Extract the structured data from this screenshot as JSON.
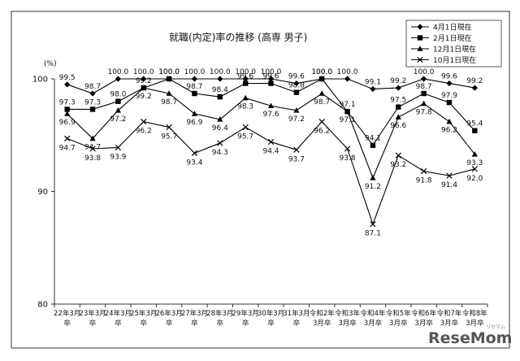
{
  "chart_data": {
    "type": "line",
    "title": "就職(内定)率の推移 (高専 男子)",
    "ylabel": "(%)",
    "ylim": [
      80,
      100
    ],
    "yticks": [
      "80",
      "90",
      "100"
    ],
    "grid": false,
    "legend_position": "top-right",
    "categories": [
      [
        "22年3月",
        "卒"
      ],
      [
        "23年3月",
        "卒"
      ],
      [
        "24年3月",
        "卒"
      ],
      [
        "25年3月",
        "卒"
      ],
      [
        "26年3月",
        "卒"
      ],
      [
        "27年3月",
        "卒"
      ],
      [
        "28年3月",
        "卒"
      ],
      [
        "29年3月",
        "卒"
      ],
      [
        "30年3月",
        "卒"
      ],
      [
        "31年3月",
        "卒"
      ],
      [
        "令和2年",
        "3月卒"
      ],
      [
        "令和3年",
        "3月卒"
      ],
      [
        "令和4年",
        "3月卒"
      ],
      [
        "令和5年",
        "3月卒"
      ],
      [
        "令和6年",
        "3月卒"
      ],
      [
        "令和7年",
        "3月卒"
      ],
      [
        "令和8年",
        "3月卒"
      ]
    ],
    "series": [
      {
        "name": "4月1日現在",
        "marker": "diamond",
        "values": [
          99.5,
          98.7,
          100.0,
          100.0,
          100.0,
          100.0,
          100.0,
          100.0,
          100.0,
          99.6,
          100.0,
          100.0,
          99.1,
          99.2,
          100.0,
          99.6,
          99.2
        ],
        "labels": [
          "99.5",
          "98.7",
          "100.0",
          "100.0",
          "100.0",
          "100.0",
          "100.0",
          "100.0",
          "100.0",
          "99.6",
          "100.0",
          "100.0",
          "99.1",
          "99.2",
          "100.0",
          "99.6",
          "99.2"
        ]
      },
      {
        "name": "2月1日現在",
        "marker": "square",
        "values": [
          97.3,
          97.3,
          98.0,
          99.2,
          100.0,
          98.7,
          98.4,
          99.6,
          99.6,
          98.8,
          100.0,
          97.1,
          94.1,
          97.5,
          98.7,
          97.9,
          95.4
        ],
        "labels": [
          "97.3",
          "97.3",
          "98.0",
          "99.2",
          "100.0",
          "98.7",
          "98.4",
          "99.6",
          "99.6",
          "98.8",
          "100.0",
          "97.1",
          "94.1",
          "97.5",
          "98.7",
          "97.9",
          "95.4"
        ]
      },
      {
        "name": "12月1日現在",
        "marker": "triangle",
        "values": [
          96.9,
          94.7,
          97.2,
          99.2,
          98.7,
          96.9,
          96.4,
          98.3,
          97.6,
          97.2,
          98.7,
          97.1,
          91.2,
          96.6,
          97.8,
          96.2,
          93.3
        ],
        "labels": [
          "96.9",
          "94.7",
          "97.2",
          "99.2",
          "98.7",
          "96.9",
          "96.4",
          "98.3",
          "97.6",
          "97.2",
          "98.7",
          "97.1",
          "91.2",
          "96.6",
          "97.8",
          "96.2",
          "93.3"
        ]
      },
      {
        "name": "10月1日現在",
        "marker": "x",
        "values": [
          94.7,
          93.8,
          93.9,
          96.2,
          95.7,
          93.4,
          94.3,
          95.7,
          94.4,
          93.7,
          96.2,
          93.8,
          87.1,
          93.2,
          91.8,
          91.4,
          92.0
        ],
        "labels": [
          "94.7",
          "93.8",
          "93.9",
          "96.2",
          "95.7",
          "93.4",
          "94.3",
          "95.7",
          "94.4",
          "93.7",
          "96.2",
          "93.8",
          "87.1",
          "93.2",
          "91.8",
          "91.4",
          "92.0"
        ]
      }
    ]
  },
  "watermark": {
    "brand": "ReseMom",
    "sub": "リセマム"
  }
}
